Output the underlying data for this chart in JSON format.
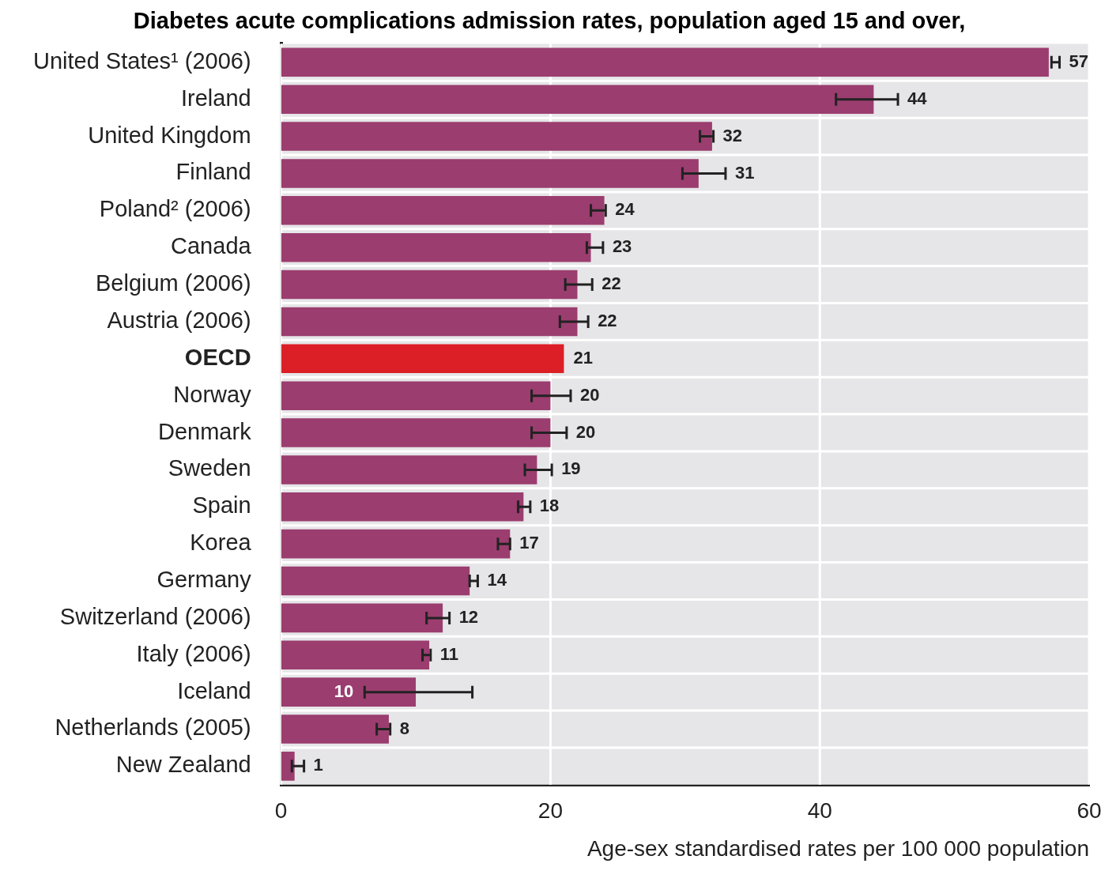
{
  "chart_data": {
    "type": "bar",
    "orientation": "horizontal",
    "title": "Diabetes acute complications admission rates, population aged 15 and over,",
    "xlabel": "Age-sex standardised rates per 100 000 population",
    "categories": [
      "United States¹ (2006)",
      "Ireland",
      "United Kingdom",
      "Finland",
      "Poland² (2006)",
      "Canada",
      "Belgium (2006)",
      "Austria (2006)",
      "OECD",
      "Norway",
      "Denmark",
      "Sweden",
      "Spain",
      "Korea",
      "Germany",
      "Switzerland (2006)",
      "Italy (2006)",
      "Iceland",
      "Netherlands (2005)",
      "New Zealand"
    ],
    "values": [
      57,
      44,
      32,
      31,
      24,
      23,
      22,
      22,
      21,
      20,
      20,
      19,
      18,
      17,
      14,
      12,
      11,
      10,
      8,
      1
    ],
    "colors": [
      "#9b3d6f",
      "#9b3d6f",
      "#9b3d6f",
      "#9b3d6f",
      "#9b3d6f",
      "#9b3d6f",
      "#9b3d6f",
      "#9b3d6f",
      "#dc1f26",
      "#9b3d6f",
      "#9b3d6f",
      "#9b3d6f",
      "#9b3d6f",
      "#9b3d6f",
      "#9b3d6f",
      "#9b3d6f",
      "#9b3d6f",
      "#9b3d6f",
      "#9b3d6f",
      "#9b3d6f"
    ],
    "errors": [
      [
        57.2,
        57.8
      ],
      [
        41.2,
        45.8
      ],
      [
        31.1,
        32.1
      ],
      [
        29.8,
        33.0
      ],
      [
        23.0,
        24.1
      ],
      [
        22.7,
        23.9
      ],
      [
        21.1,
        23.1
      ],
      [
        20.7,
        22.8
      ],
      null,
      [
        18.6,
        21.5
      ],
      [
        18.6,
        21.2
      ],
      [
        18.1,
        20.1
      ],
      [
        17.6,
        18.5
      ],
      [
        16.1,
        17.0
      ],
      [
        14.0,
        14.6
      ],
      [
        10.8,
        12.5
      ],
      [
        10.5,
        11.1
      ],
      [
        6.2,
        14.2
      ],
      [
        7.1,
        8.1
      ],
      [
        0.8,
        1.7
      ]
    ],
    "xlim": [
      0,
      60
    ],
    "xticks": [
      0,
      20,
      40,
      60
    ],
    "grid": true,
    "data_labels": true
  }
}
